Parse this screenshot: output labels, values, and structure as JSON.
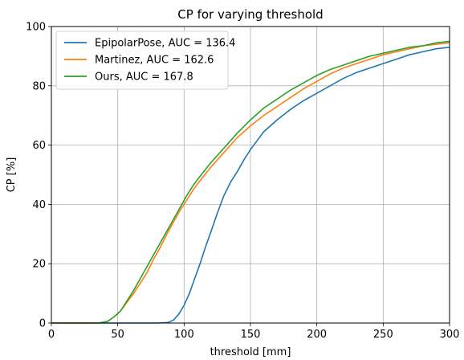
{
  "chart_data": {
    "type": "line",
    "title": "CP for varying threshold",
    "xlabel": "threshold [mm]",
    "ylabel": "CP [%]",
    "xlim": [
      0,
      300
    ],
    "ylim": [
      0,
      100
    ],
    "xticks": [
      0,
      50,
      100,
      150,
      200,
      250,
      300
    ],
    "yticks": [
      0,
      20,
      40,
      60,
      80,
      100
    ],
    "grid": true,
    "legend_position": "top-left",
    "series": [
      {
        "name": "EpipolarPose, AUC = 136.4",
        "color": "#1f77b4",
        "x": [
          0,
          80,
          88,
          92,
          96,
          100,
          104,
          108,
          112,
          116,
          120,
          125,
          130,
          135,
          140,
          145,
          150,
          155,
          160,
          170,
          180,
          190,
          200,
          210,
          220,
          230,
          240,
          250,
          260,
          270,
          280,
          290,
          300
        ],
        "y": [
          0,
          0,
          0.2,
          1,
          3,
          6,
          10,
          15,
          20,
          25.5,
          30.5,
          37,
          43,
          47.5,
          51,
          55,
          58.5,
          61.5,
          64.5,
          68.5,
          72,
          75,
          77.5,
          80,
          82.5,
          84.5,
          86,
          87.5,
          89,
          90.5,
          91.5,
          92.5,
          93
        ]
      },
      {
        "name": "Martinez, AUC = 162.6",
        "color": "#ff7f0e",
        "x": [
          0,
          35,
          42,
          47,
          52,
          57,
          62,
          67,
          72,
          77,
          82,
          87,
          92,
          97,
          102,
          107,
          112,
          120,
          130,
          140,
          150,
          160,
          170,
          180,
          190,
          200,
          210,
          220,
          230,
          240,
          250,
          260,
          270,
          280,
          290,
          300
        ],
        "y": [
          0,
          0,
          0.5,
          2,
          4,
          7,
          10,
          13.5,
          17,
          21.5,
          25.5,
          30,
          34,
          38,
          41.5,
          45,
          48,
          52.5,
          57.5,
          62.5,
          66.5,
          70,
          73,
          76,
          79,
          81.5,
          84,
          86,
          87.5,
          89,
          90.5,
          91.5,
          92.5,
          93.5,
          94,
          94.5
        ]
      },
      {
        "name": "Ours, AUC = 167.8",
        "color": "#2ca02c",
        "x": [
          0,
          35,
          42,
          47,
          52,
          57,
          62,
          67,
          72,
          77,
          82,
          87,
          92,
          97,
          102,
          107,
          112,
          120,
          130,
          140,
          150,
          160,
          170,
          180,
          190,
          200,
          210,
          220,
          230,
          240,
          250,
          260,
          270,
          280,
          290,
          300
        ],
        "y": [
          0,
          0,
          0.5,
          2,
          4,
          7.5,
          11,
          15,
          19,
          23,
          27,
          31,
          35,
          39,
          43,
          46.5,
          49.5,
          54,
          59,
          64,
          68.5,
          72.5,
          75.5,
          78.5,
          81,
          83.5,
          85.5,
          87,
          88.5,
          90,
          91,
          92,
          93,
          93.5,
          94.5,
          95
        ]
      }
    ]
  }
}
